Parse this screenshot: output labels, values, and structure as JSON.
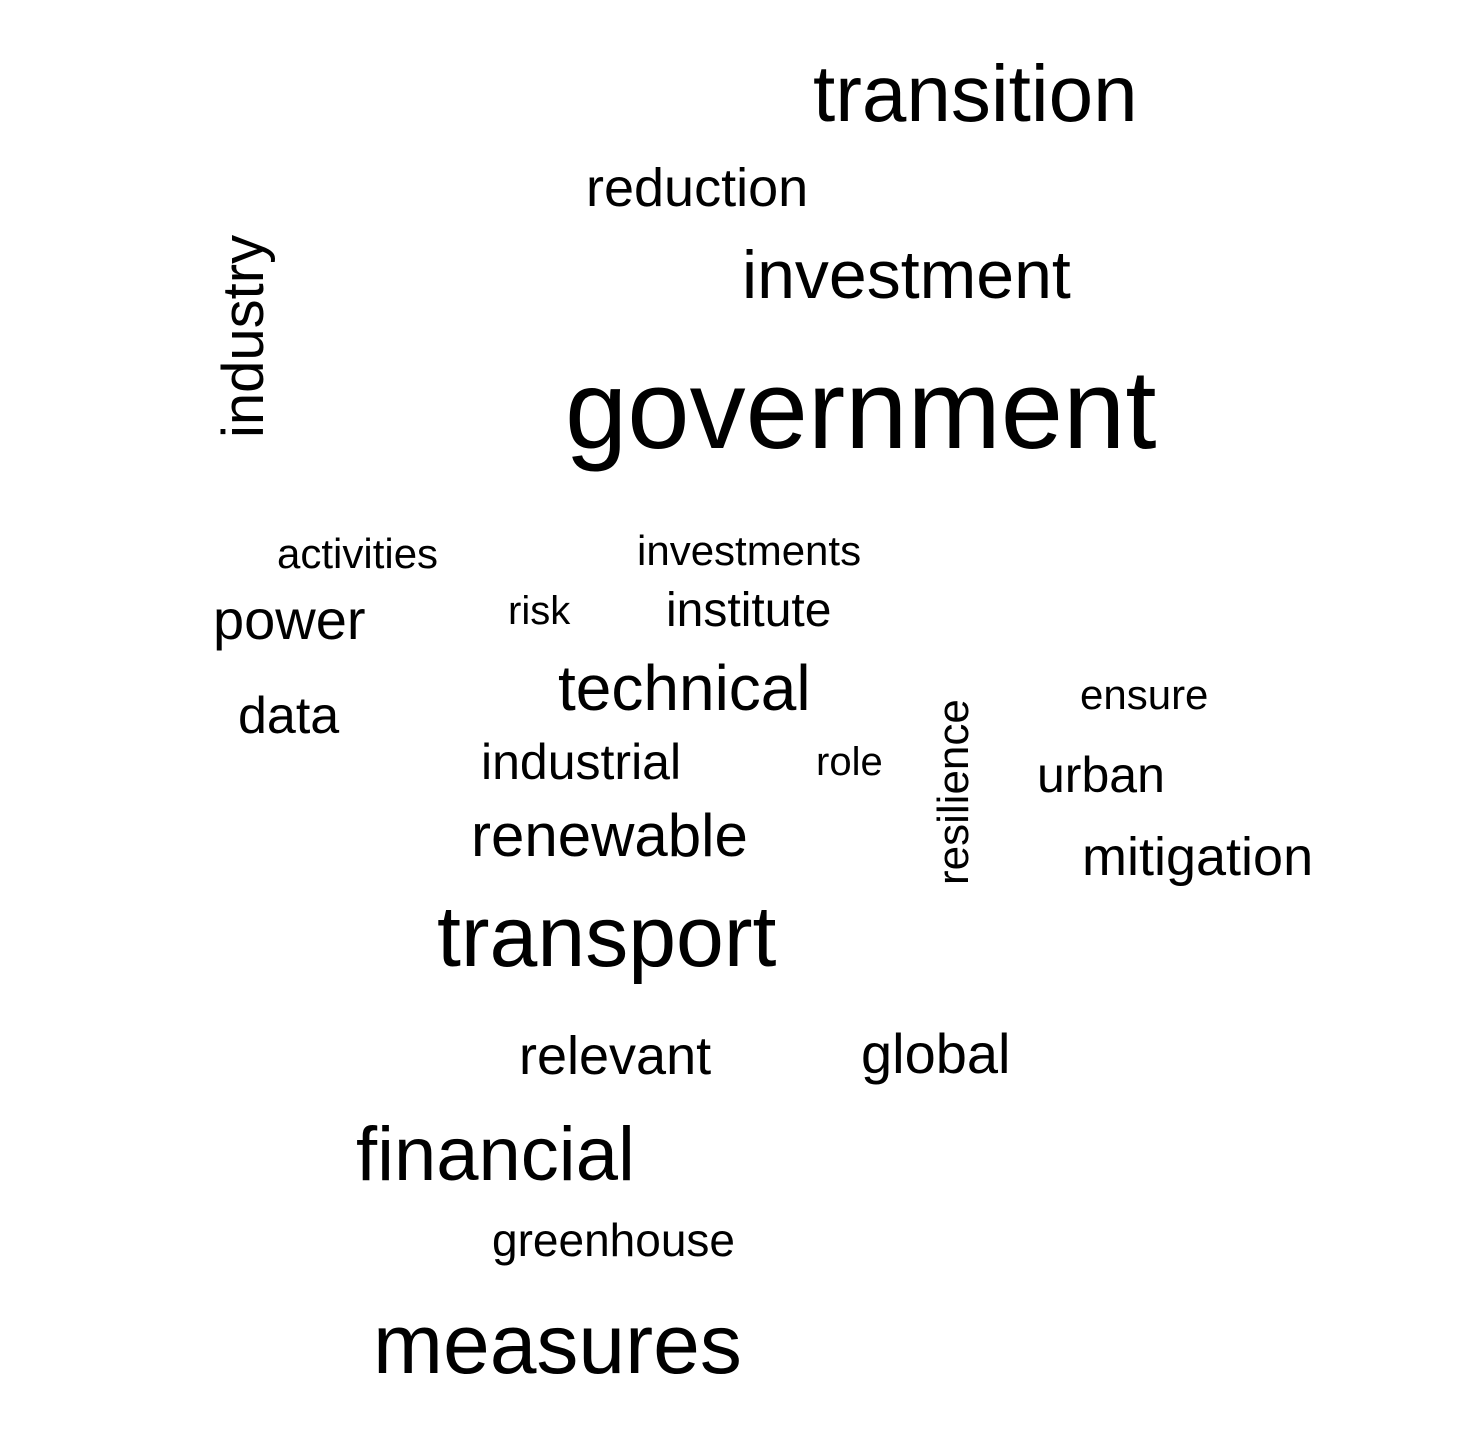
{
  "words": {
    "transition": "transition",
    "reduction": "reduction",
    "investment": "investment",
    "government": "government",
    "industry": "industry",
    "activities": "activities",
    "investments": "investments",
    "power": "power",
    "risk": "risk",
    "institute": "institute",
    "technical": "technical",
    "data": "data",
    "ensure": "ensure",
    "industrial": "industrial",
    "role": "role",
    "resilience": "resilience",
    "urban": "urban",
    "renewable": "renewable",
    "mitigation": "mitigation",
    "transport": "transport",
    "relevant": "relevant",
    "global": "global",
    "financial": "financial",
    "greenhouse": "greenhouse",
    "measures": "measures"
  },
  "colors": {
    "text": "#000000",
    "background": "#ffffff"
  }
}
